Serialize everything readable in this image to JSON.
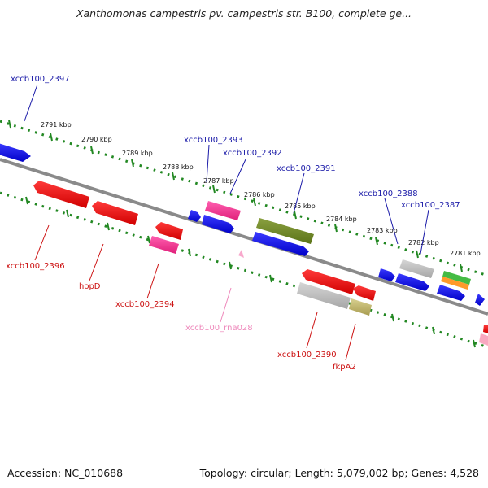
{
  "title": "Xanthomonas campestris pv. campestris str. B100, complete ge...",
  "footer": {
    "accession": "Accession: NC_010688",
    "summary": "Topology: circular; Length: 5,079,002 bp; Genes: 4,528"
  },
  "scale": {
    "unit_label": "kbp",
    "ticks": [
      "2791 kbp",
      "2790 kbp",
      "2789 kbp",
      "2788 kbp",
      "2787 kbp",
      "2786 kbp",
      "2785 kbp",
      "2784 kbp",
      "2783 kbp",
      "2782 kbp",
      "2781 kbp"
    ]
  },
  "gene_labels": {
    "upper": [
      "xccb100_2397",
      "xccb100_2393",
      "xccb100_2392",
      "xccb100_2391",
      "xccb100_2388",
      "xccb100_2387"
    ],
    "lower": [
      "xccb100_2396",
      "hopD",
      "xccb100_2394",
      "xccb100_rna028",
      "xccb100_2390",
      "fkpA2"
    ]
  },
  "colors": {
    "forward_gene": "#1010e0",
    "reverse_gene": "#ee1111",
    "rna_gene": "#ff4fa0",
    "pseudo_gene": "#b4b4b4",
    "forward_label": "#1a1aa8",
    "reverse_label": "#cc1111",
    "rna_label": "#ee88bb",
    "backbone": "#8a8a8a",
    "ruler": "#228822"
  }
}
